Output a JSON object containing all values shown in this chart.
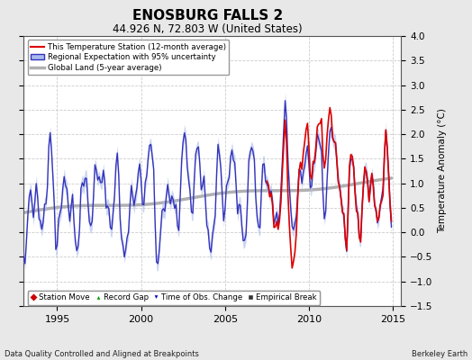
{
  "title": "ENOSBURG FALLS 2",
  "subtitle": "44.926 N, 72.803 W (United States)",
  "ylabel": "Temperature Anomaly (°C)",
  "footer_left": "Data Quality Controlled and Aligned at Breakpoints",
  "footer_right": "Berkeley Earth",
  "xlim": [
    1993.0,
    2015.5
  ],
  "ylim": [
    -1.5,
    4.0
  ],
  "yticks": [
    -1.5,
    -1.0,
    -0.5,
    0.0,
    0.5,
    1.0,
    1.5,
    2.0,
    2.5,
    3.0,
    3.5,
    4.0
  ],
  "xticks": [
    1995,
    2000,
    2005,
    2010,
    2015
  ],
  "background_color": "#e8e8e8",
  "plot_bg_color": "#ffffff",
  "grid_color": "#cccccc",
  "regional_color": "#3333bb",
  "regional_band_color": "#aabbee",
  "station_color": "#dd0000",
  "global_color": "#b0b0b0",
  "legend_items": [
    {
      "label": "This Temperature Station (12-month average)",
      "color": "#dd0000",
      "lw": 1.5
    },
    {
      "label": "Regional Expectation with 95% uncertainty",
      "color": "#3333bb",
      "lw": 1.2
    },
    {
      "label": "Global Land (5-year average)",
      "color": "#b0b0b0",
      "lw": 2.5
    }
  ],
  "marker_legend": [
    {
      "label": "Station Move",
      "marker": "D",
      "color": "#cc0000"
    },
    {
      "label": "Record Gap",
      "marker": "^",
      "color": "#009900"
    },
    {
      "label": "Time of Obs. Change",
      "marker": "v",
      "color": "#0000cc"
    },
    {
      "label": "Empirical Break",
      "marker": "s",
      "color": "#333333"
    }
  ]
}
